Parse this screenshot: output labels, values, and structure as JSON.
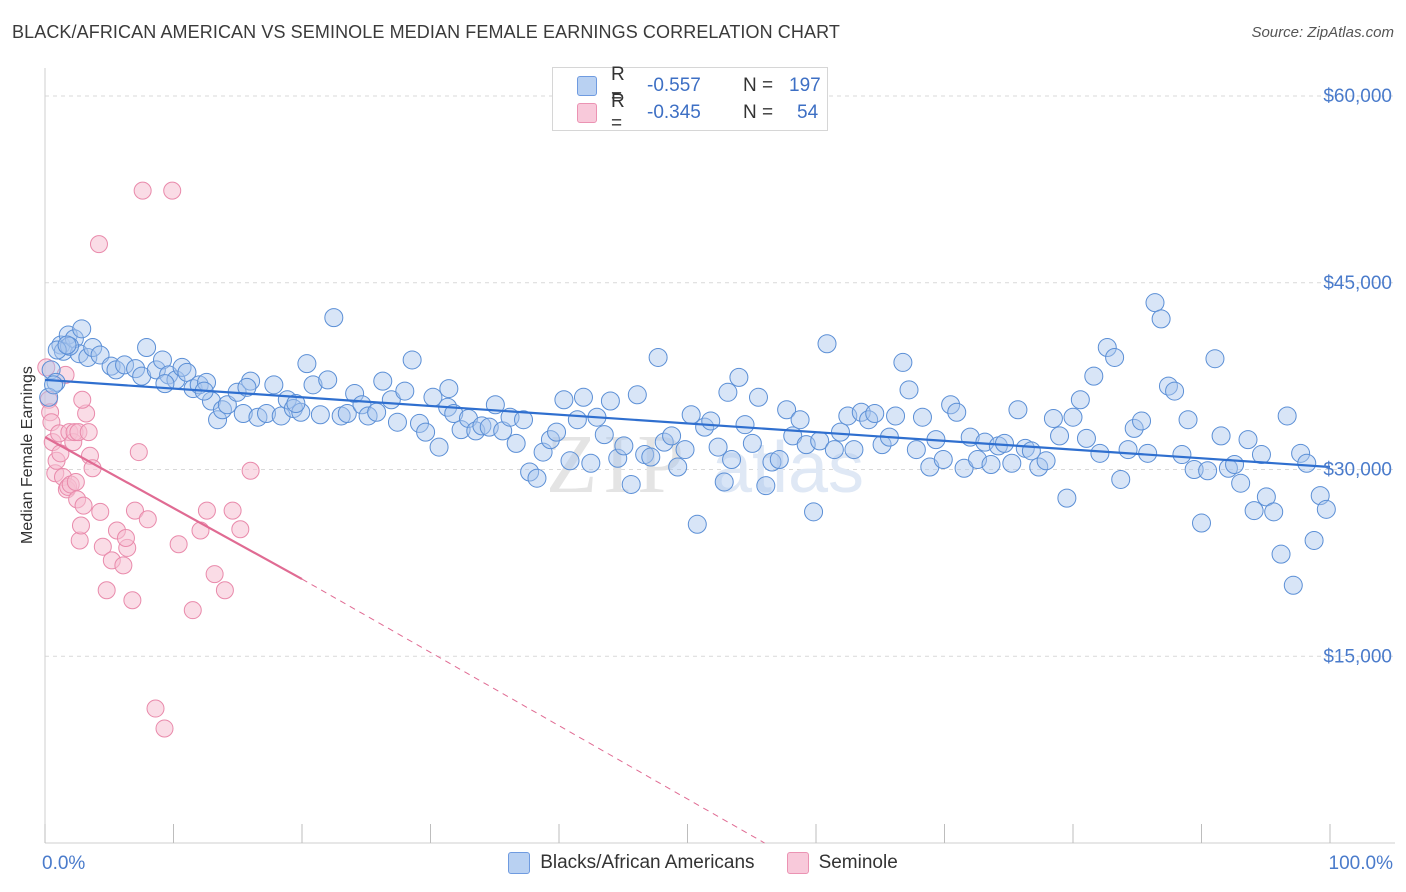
{
  "header": {
    "title": "BLACK/AFRICAN AMERICAN VS SEMINOLE MEDIAN FEMALE EARNINGS CORRELATION CHART",
    "source": "Source: ZipAtlas.com"
  },
  "watermark": {
    "zip": "ZIP",
    "atlas": "atlas"
  },
  "legend_top": {
    "rows": [
      {
        "r_label": "R =",
        "r_value": "-0.557",
        "n_label": "N =",
        "n_value": "197"
      },
      {
        "r_label": "R =",
        "r_value": "-0.345",
        "n_label": "N =",
        "n_value": "54"
      }
    ]
  },
  "colors": {
    "blue_fill": "#a9c6ee",
    "blue_stroke": "#5b8fd6",
    "blue_line": "#2f6fcf",
    "pink_fill": "#f6bfd2",
    "pink_stroke": "#e98aab",
    "pink_line": "#e06b93",
    "tick_text": "#4a7bcb",
    "grid": "#d9d9d9"
  },
  "chart_data": {
    "type": "scatter",
    "title": "BLACK/AFRICAN AMERICAN VS SEMINOLE MEDIAN FEMALE EARNINGS CORRELATION CHART",
    "xlabel": "",
    "ylabel": "Median Female Earnings",
    "xlim": [
      0,
      100
    ],
    "ylim": [
      0,
      60000
    ],
    "x_tick_labels": [
      "0.0%",
      "100.0%"
    ],
    "y_ticks": [
      15000,
      30000,
      45000,
      60000
    ],
    "y_tick_labels": [
      "$15,000",
      "$30,000",
      "$45,000",
      "$60,000"
    ],
    "grid": true,
    "legend_position": "bottom",
    "series": [
      {
        "name": "Blacks/African Americans",
        "trend": {
          "x": [
            0,
            100
          ],
          "y": [
            37200,
            30200
          ]
        },
        "points": [
          [
            0.5,
            38000
          ],
          [
            0.9,
            37000
          ],
          [
            1.3,
            40000
          ],
          [
            1.5,
            39500
          ],
          [
            1.9,
            40800
          ],
          [
            2.4,
            40500
          ],
          [
            2.8,
            39300
          ],
          [
            3.5,
            39000
          ],
          [
            3.9,
            39800
          ],
          [
            4.5,
            39200
          ],
          [
            5.4,
            38300
          ],
          [
            5.8,
            38000
          ],
          [
            6.5,
            38400
          ],
          [
            7.4,
            38100
          ],
          [
            7.9,
            37500
          ],
          [
            8.3,
            39800
          ],
          [
            9.1,
            38000
          ],
          [
            9.6,
            38800
          ],
          [
            10.1,
            37600
          ],
          [
            10.7,
            37200
          ],
          [
            11.2,
            38200
          ],
          [
            11.6,
            37800
          ],
          [
            12.1,
            36500
          ],
          [
            12.6,
            36800
          ],
          [
            13.2,
            37000
          ],
          [
            13.6,
            35500
          ],
          [
            14.1,
            34000
          ],
          [
            14.5,
            34800
          ],
          [
            14.9,
            35200
          ],
          [
            15.7,
            36200
          ],
          [
            16.2,
            34500
          ],
          [
            16.8,
            37100
          ],
          [
            17.4,
            34200
          ],
          [
            18.1,
            34500
          ],
          [
            18.7,
            36800
          ],
          [
            19.3,
            34300
          ],
          [
            19.8,
            35600
          ],
          [
            20.3,
            34900
          ],
          [
            20.9,
            34600
          ],
          [
            21.4,
            38500
          ],
          [
            21.9,
            36800
          ],
          [
            22.5,
            34400
          ],
          [
            23.1,
            37200
          ],
          [
            23.6,
            42200
          ],
          [
            24.2,
            34300
          ],
          [
            24.7,
            34500
          ],
          [
            25.3,
            36100
          ],
          [
            25.9,
            35200
          ],
          [
            26.4,
            34300
          ],
          [
            27.1,
            34600
          ],
          [
            27.6,
            37100
          ],
          [
            28.3,
            35600
          ],
          [
            28.8,
            33800
          ],
          [
            29.4,
            36300
          ],
          [
            30.0,
            38800
          ],
          [
            30.6,
            33700
          ],
          [
            31.1,
            33000
          ],
          [
            31.7,
            35800
          ],
          [
            32.2,
            31800
          ],
          [
            32.9,
            35000
          ],
          [
            33.4,
            34500
          ],
          [
            34.0,
            33200
          ],
          [
            34.6,
            34100
          ],
          [
            35.2,
            33100
          ],
          [
            35.7,
            33500
          ],
          [
            36.3,
            33400
          ],
          [
            36.8,
            35200
          ],
          [
            37.4,
            33100
          ],
          [
            38.0,
            34200
          ],
          [
            38.5,
            32100
          ],
          [
            39.1,
            34000
          ],
          [
            39.6,
            29800
          ],
          [
            40.2,
            29300
          ],
          [
            40.7,
            31400
          ],
          [
            41.3,
            32400
          ],
          [
            41.8,
            33000
          ],
          [
            42.4,
            35600
          ],
          [
            42.9,
            30700
          ],
          [
            43.5,
            34000
          ],
          [
            44.0,
            35800
          ],
          [
            44.6,
            30500
          ],
          [
            45.1,
            34200
          ],
          [
            45.7,
            32800
          ],
          [
            46.2,
            35500
          ],
          [
            46.8,
            30900
          ],
          [
            47.3,
            31900
          ],
          [
            47.9,
            28800
          ],
          [
            48.4,
            36000
          ],
          [
            49.0,
            31200
          ],
          [
            49.5,
            31000
          ],
          [
            50.1,
            39000
          ],
          [
            50.6,
            32200
          ],
          [
            51.2,
            32700
          ],
          [
            51.7,
            30200
          ],
          [
            52.3,
            31600
          ],
          [
            52.8,
            34400
          ],
          [
            53.3,
            25600
          ],
          [
            53.9,
            33400
          ],
          [
            54.4,
            33900
          ],
          [
            55.0,
            31800
          ],
          [
            55.5,
            29000
          ],
          [
            56.1,
            30800
          ],
          [
            56.7,
            37400
          ],
          [
            57.2,
            33600
          ],
          [
            57.8,
            32100
          ],
          [
            58.3,
            35800
          ],
          [
            58.9,
            28700
          ],
          [
            59.4,
            30600
          ],
          [
            60.0,
            30800
          ],
          [
            60.6,
            34800
          ],
          [
            61.1,
            32700
          ],
          [
            61.7,
            34000
          ],
          [
            62.2,
            32000
          ],
          [
            62.8,
            26600
          ],
          [
            63.3,
            32300
          ],
          [
            63.9,
            40100
          ],
          [
            64.5,
            31600
          ],
          [
            65.0,
            33000
          ],
          [
            65.6,
            34300
          ],
          [
            66.1,
            31600
          ],
          [
            66.7,
            34600
          ],
          [
            67.3,
            34000
          ],
          [
            67.8,
            34500
          ],
          [
            68.4,
            32000
          ],
          [
            69.0,
            32600
          ],
          [
            69.5,
            34300
          ],
          [
            70.1,
            38600
          ],
          [
            70.6,
            36400
          ],
          [
            71.2,
            31600
          ],
          [
            71.7,
            34200
          ],
          [
            72.3,
            30200
          ],
          [
            72.8,
            32400
          ],
          [
            73.4,
            30800
          ],
          [
            74.0,
            35200
          ],
          [
            74.5,
            34600
          ],
          [
            75.1,
            30100
          ],
          [
            75.6,
            32600
          ],
          [
            76.2,
            30800
          ],
          [
            76.8,
            32200
          ],
          [
            77.3,
            30400
          ],
          [
            77.9,
            31900
          ],
          [
            78.4,
            32100
          ],
          [
            79.0,
            30500
          ],
          [
            79.5,
            34800
          ],
          [
            80.1,
            31700
          ],
          [
            80.6,
            31500
          ],
          [
            81.2,
            30200
          ],
          [
            81.8,
            30700
          ],
          [
            82.4,
            34100
          ],
          [
            82.9,
            32700
          ],
          [
            83.5,
            27700
          ],
          [
            84.0,
            34200
          ],
          [
            84.6,
            35600
          ],
          [
            85.1,
            32500
          ],
          [
            85.7,
            37500
          ],
          [
            86.2,
            31300
          ],
          [
            86.8,
            39800
          ],
          [
            87.4,
            39000
          ],
          [
            87.9,
            29200
          ],
          [
            88.5,
            31600
          ],
          [
            89.0,
            33300
          ],
          [
            89.6,
            33900
          ],
          [
            90.1,
            31300
          ],
          [
            90.7,
            43400
          ],
          [
            91.2,
            42100
          ],
          [
            91.8,
            36700
          ],
          [
            92.3,
            36300
          ],
          [
            92.9,
            31200
          ],
          [
            93.4,
            34000
          ],
          [
            93.9,
            30000
          ],
          [
            94.5,
            25700
          ],
          [
            95.0,
            29900
          ],
          [
            95.6,
            38900
          ],
          [
            96.1,
            32700
          ],
          [
            96.7,
            30100
          ],
          [
            97.2,
            30400
          ],
          [
            97.7,
            28900
          ],
          [
            98.3,
            32400
          ],
          [
            98.8,
            26700
          ],
          [
            99.4,
            31200
          ],
          [
            99.8,
            27800
          ],
          [
            100.4,
            26600
          ],
          [
            101.0,
            23200
          ],
          [
            101.5,
            34300
          ],
          [
            102.0,
            20700
          ],
          [
            102.6,
            31300
          ],
          [
            103.1,
            30500
          ],
          [
            103.7,
            24300
          ],
          [
            104.2,
            27900
          ],
          [
            104.7,
            26800
          ],
          [
            0.3,
            35800
          ],
          [
            0.7,
            36800
          ],
          [
            2.0,
            39900
          ],
          [
            1.0,
            39600
          ],
          [
            1.8,
            40000
          ],
          [
            3.0,
            41300
          ],
          [
            9.8,
            36900
          ],
          [
            13.0,
            36300
          ],
          [
            16.5,
            36600
          ],
          [
            20.5,
            35300
          ],
          [
            33.0,
            36500
          ],
          [
            55.8,
            36200
          ]
        ]
      },
      {
        "name": "Seminole",
        "trend": {
          "x": [
            0,
            20
          ],
          "y": [
            32600,
            21200
          ]
        },
        "trend_extension": {
          "x": [
            20,
            56
          ],
          "y": [
            21200,
            0
          ]
        },
        "points": [
          [
            0.1,
            38200
          ],
          [
            0.3,
            35600
          ],
          [
            0.4,
            34600
          ],
          [
            0.5,
            33800
          ],
          [
            0.6,
            32200
          ],
          [
            0.8,
            29700
          ],
          [
            0.9,
            30700
          ],
          [
            1.1,
            32900
          ],
          [
            1.2,
            31300
          ],
          [
            1.4,
            29400
          ],
          [
            1.6,
            37600
          ],
          [
            1.7,
            28400
          ],
          [
            1.8,
            28600
          ],
          [
            1.9,
            33000
          ],
          [
            2.0,
            28800
          ],
          [
            2.2,
            32200
          ],
          [
            2.3,
            33000
          ],
          [
            2.4,
            29000
          ],
          [
            2.5,
            27600
          ],
          [
            2.6,
            33000
          ],
          [
            2.7,
            24300
          ],
          [
            2.8,
            25500
          ],
          [
            3.0,
            27100
          ],
          [
            3.2,
            34500
          ],
          [
            3.4,
            33000
          ],
          [
            3.5,
            31100
          ],
          [
            3.7,
            30100
          ],
          [
            4.3,
            26600
          ],
          [
            4.5,
            23800
          ],
          [
            4.8,
            20300
          ],
          [
            5.2,
            22700
          ],
          [
            5.6,
            25100
          ],
          [
            6.1,
            22300
          ],
          [
            6.4,
            23700
          ],
          [
            6.8,
            19500
          ],
          [
            7.0,
            26700
          ],
          [
            7.3,
            31400
          ],
          [
            7.6,
            52400
          ],
          [
            8.0,
            26000
          ],
          [
            8.6,
            10800
          ],
          [
            9.3,
            9200
          ],
          [
            9.9,
            52400
          ],
          [
            10.4,
            24000
          ],
          [
            11.5,
            18700
          ],
          [
            12.1,
            25100
          ],
          [
            12.6,
            26700
          ],
          [
            13.2,
            21600
          ],
          [
            14.0,
            20300
          ],
          [
            14.6,
            26700
          ],
          [
            15.2,
            25200
          ],
          [
            16.0,
            29900
          ],
          [
            4.2,
            48100
          ],
          [
            2.9,
            35600
          ],
          [
            6.3,
            24500
          ]
        ]
      }
    ]
  }
}
